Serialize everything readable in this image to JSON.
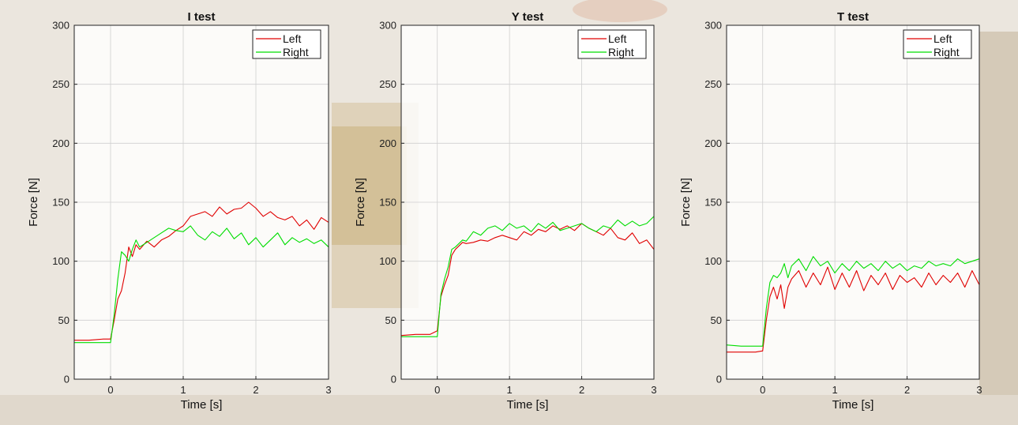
{
  "chart_data": [
    {
      "type": "line",
      "title": "I test",
      "xlabel": "Time [s]",
      "ylabel": "Force [N]",
      "xlim": [
        -0.5,
        3
      ],
      "ylim": [
        0,
        300
      ],
      "xticks": [
        0,
        1,
        2,
        3
      ],
      "yticks": [
        0,
        50,
        100,
        150,
        200,
        250,
        300
      ],
      "grid": true,
      "legend": "top-right",
      "series": [
        {
          "name": "Left",
          "color": "#e00000",
          "x": [
            -0.5,
            -0.3,
            -0.1,
            0,
            0.05,
            0.1,
            0.15,
            0.2,
            0.25,
            0.3,
            0.35,
            0.4,
            0.5,
            0.6,
            0.7,
            0.8,
            0.9,
            1.0,
            1.1,
            1.2,
            1.3,
            1.4,
            1.5,
            1.6,
            1.7,
            1.8,
            1.9,
            2.0,
            2.1,
            2.2,
            2.3,
            2.4,
            2.5,
            2.6,
            2.7,
            2.8,
            2.9,
            3.0
          ],
          "y": [
            33,
            33,
            34,
            34,
            50,
            68,
            75,
            90,
            112,
            104,
            114,
            110,
            117,
            112,
            118,
            121,
            126,
            130,
            138,
            140,
            142,
            138,
            146,
            140,
            144,
            145,
            150,
            145,
            138,
            142,
            137,
            135,
            138,
            130,
            135,
            127,
            137,
            133
          ]
        },
        {
          "name": "Right",
          "color": "#00dd00",
          "x": [
            -0.5,
            -0.3,
            -0.1,
            0,
            0.05,
            0.1,
            0.15,
            0.2,
            0.25,
            0.3,
            0.35,
            0.4,
            0.5,
            0.6,
            0.7,
            0.8,
            0.9,
            1.0,
            1.1,
            1.2,
            1.3,
            1.4,
            1.5,
            1.6,
            1.7,
            1.8,
            1.9,
            2.0,
            2.1,
            2.2,
            2.3,
            2.4,
            2.5,
            2.6,
            2.7,
            2.8,
            2.9,
            3.0
          ],
          "y": [
            31,
            31,
            31,
            31,
            55,
            85,
            108,
            105,
            100,
            110,
            118,
            112,
            116,
            120,
            124,
            128,
            126,
            125,
            130,
            122,
            118,
            125,
            121,
            128,
            119,
            124,
            114,
            120,
            112,
            118,
            124,
            114,
            120,
            116,
            119,
            115,
            118,
            112
          ]
        }
      ]
    },
    {
      "type": "line",
      "title": "Y test",
      "xlabel": "Time [s]",
      "ylabel": "Force [N]",
      "xlim": [
        -0.5,
        3
      ],
      "ylim": [
        0,
        300
      ],
      "xticks": [
        0,
        1,
        2,
        3
      ],
      "yticks": [
        0,
        50,
        100,
        150,
        200,
        250,
        300
      ],
      "grid": true,
      "legend": "top-right",
      "series": [
        {
          "name": "Left",
          "color": "#e00000",
          "x": [
            -0.5,
            -0.3,
            -0.1,
            0,
            0.05,
            0.1,
            0.15,
            0.2,
            0.25,
            0.3,
            0.35,
            0.4,
            0.5,
            0.6,
            0.7,
            0.8,
            0.9,
            1.0,
            1.1,
            1.2,
            1.3,
            1.4,
            1.5,
            1.6,
            1.7,
            1.8,
            1.9,
            2.0,
            2.1,
            2.2,
            2.3,
            2.4,
            2.5,
            2.6,
            2.7,
            2.8,
            2.9,
            3.0
          ],
          "y": [
            37,
            38,
            38,
            41,
            70,
            80,
            88,
            105,
            110,
            113,
            116,
            115,
            116,
            118,
            117,
            120,
            122,
            120,
            118,
            125,
            122,
            127,
            125,
            130,
            127,
            130,
            126,
            132,
            128,
            125,
            122,
            128,
            120,
            118,
            124,
            115,
            118,
            110
          ]
        },
        {
          "name": "Right",
          "color": "#00dd00",
          "x": [
            -0.5,
            -0.3,
            -0.1,
            0,
            0.05,
            0.1,
            0.15,
            0.2,
            0.25,
            0.3,
            0.35,
            0.4,
            0.5,
            0.6,
            0.7,
            0.8,
            0.9,
            1.0,
            1.1,
            1.2,
            1.3,
            1.4,
            1.5,
            1.6,
            1.7,
            1.8,
            1.9,
            2.0,
            2.1,
            2.2,
            2.3,
            2.4,
            2.5,
            2.6,
            2.7,
            2.8,
            2.9,
            3.0
          ],
          "y": [
            36,
            36,
            36,
            36,
            72,
            85,
            95,
            110,
            112,
            115,
            118,
            117,
            125,
            122,
            128,
            130,
            126,
            132,
            128,
            130,
            125,
            132,
            128,
            133,
            126,
            128,
            130,
            132,
            128,
            125,
            130,
            128,
            135,
            130,
            134,
            130,
            132,
            138
          ]
        }
      ]
    },
    {
      "type": "line",
      "title": "T test",
      "xlabel": "Time [s]",
      "ylabel": "Force [N]",
      "xlim": [
        -0.5,
        3
      ],
      "ylim": [
        0,
        300
      ],
      "xticks": [
        0,
        1,
        2,
        3
      ],
      "yticks": [
        0,
        50,
        100,
        150,
        200,
        250,
        300
      ],
      "grid": true,
      "legend": "top-right",
      "series": [
        {
          "name": "Left",
          "color": "#e00000",
          "x": [
            -0.5,
            -0.3,
            -0.1,
            0,
            0.05,
            0.1,
            0.15,
            0.2,
            0.25,
            0.3,
            0.35,
            0.4,
            0.5,
            0.6,
            0.7,
            0.8,
            0.9,
            1.0,
            1.1,
            1.2,
            1.3,
            1.4,
            1.5,
            1.6,
            1.7,
            1.8,
            1.9,
            2.0,
            2.1,
            2.2,
            2.3,
            2.4,
            2.5,
            2.6,
            2.7,
            2.8,
            2.9,
            3.0
          ],
          "y": [
            23,
            23,
            23,
            24,
            50,
            70,
            78,
            68,
            80,
            60,
            78,
            85,
            92,
            78,
            90,
            80,
            95,
            76,
            90,
            78,
            92,
            75,
            88,
            80,
            90,
            76,
            88,
            82,
            86,
            78,
            90,
            80,
            88,
            82,
            90,
            78,
            92,
            80
          ]
        },
        {
          "name": "Right",
          "color": "#00dd00",
          "x": [
            -0.5,
            -0.3,
            -0.1,
            0,
            0.05,
            0.1,
            0.15,
            0.2,
            0.25,
            0.3,
            0.35,
            0.4,
            0.5,
            0.6,
            0.7,
            0.8,
            0.9,
            1.0,
            1.1,
            1.2,
            1.3,
            1.4,
            1.5,
            1.6,
            1.7,
            1.8,
            1.9,
            2.0,
            2.1,
            2.2,
            2.3,
            2.4,
            2.5,
            2.6,
            2.7,
            2.8,
            2.9,
            3.0
          ],
          "y": [
            29,
            28,
            28,
            28,
            60,
            82,
            88,
            86,
            90,
            98,
            86,
            96,
            102,
            92,
            104,
            96,
            100,
            90,
            98,
            92,
            100,
            94,
            98,
            92,
            100,
            94,
            98,
            92,
            96,
            94,
            100,
            96,
            98,
            96,
            102,
            98,
            100,
            102
          ]
        }
      ]
    }
  ]
}
